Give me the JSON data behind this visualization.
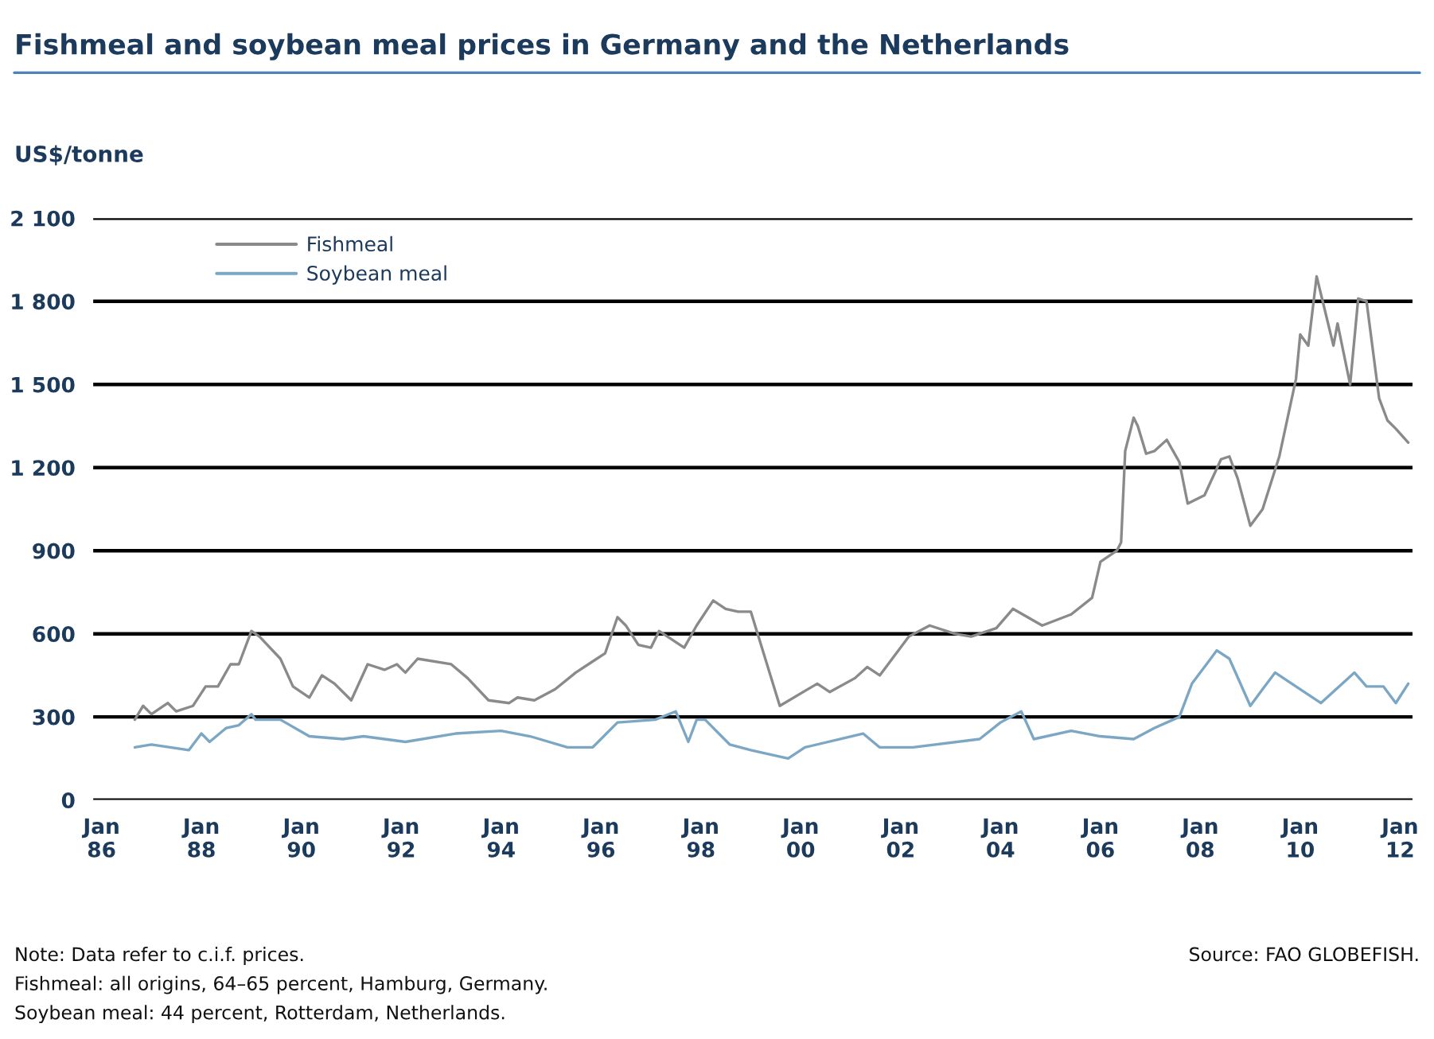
{
  "chart_data": {
    "type": "line",
    "title": "Fishmeal and soybean meal prices in Germany and the Netherlands",
    "ylabel": "US$/tonne",
    "series": [
      {
        "name": "Fishmeal",
        "color": "#8a8a8a",
        "x": [
          "1986-09",
          "1986-11",
          "1987-01",
          "1987-05",
          "1987-07",
          "1987-11",
          "1988-02",
          "1988-05",
          "1988-08",
          "1988-10",
          "1989-01",
          "1989-03",
          "1989-08",
          "1989-11",
          "1990-03",
          "1990-06",
          "1990-09",
          "1991-01",
          "1991-05",
          "1991-09",
          "1991-12",
          "1992-02",
          "1992-05",
          "1993-01",
          "1993-05",
          "1993-10",
          "1994-03",
          "1994-05",
          "1994-09",
          "1995-02",
          "1995-07",
          "1995-11",
          "1996-02",
          "1996-05",
          "1996-07",
          "1996-10",
          "1997-01",
          "1997-03",
          "1997-09",
          "1997-12",
          "1998-04",
          "1998-07",
          "1998-10",
          "1999-01",
          "1999-08",
          "2000-05",
          "2000-08",
          "2001-02",
          "2001-05",
          "2001-08",
          "2002-03",
          "2002-08",
          "2003-02",
          "2003-06",
          "2003-12",
          "2004-04",
          "2004-11",
          "2005-06",
          "2005-11",
          "2006-01",
          "2006-05",
          "2006-06",
          "2006-07",
          "2006-09",
          "2006-10",
          "2006-12",
          "2007-02",
          "2007-05",
          "2007-08",
          "2007-10",
          "2008-02",
          "2008-06",
          "2008-08",
          "2008-10",
          "2009-01",
          "2009-04",
          "2009-08",
          "2009-12",
          "2010-01",
          "2010-03",
          "2010-05",
          "2010-09",
          "2010-10",
          "2011-01",
          "2011-03",
          "2011-05",
          "2011-08",
          "2011-10",
          "2011-12",
          "2012-03"
        ],
        "values": [
          290,
          340,
          310,
          350,
          320,
          340,
          410,
          410,
          490,
          490,
          610,
          590,
          510,
          410,
          370,
          450,
          420,
          360,
          490,
          470,
          490,
          460,
          510,
          490,
          440,
          360,
          350,
          370,
          360,
          400,
          460,
          500,
          530,
          660,
          630,
          560,
          550,
          610,
          550,
          630,
          720,
          690,
          680,
          680,
          340,
          420,
          390,
          440,
          480,
          450,
          590,
          630,
          600,
          590,
          620,
          690,
          630,
          670,
          730,
          860,
          900,
          930,
          1260,
          1380,
          1350,
          1250,
          1260,
          1300,
          1220,
          1070,
          1100,
          1230,
          1240,
          1160,
          990,
          1050,
          1240,
          1520,
          1680,
          1640,
          1890,
          1640,
          1720,
          1500,
          1810,
          1800,
          1450,
          1370,
          1340,
          1290
        ]
      },
      {
        "name": "Soybean meal",
        "color": "#7ba7c4",
        "x": [
          "1986-09",
          "1987-01",
          "1987-10",
          "1988-01",
          "1988-03",
          "1988-07",
          "1988-10",
          "1989-01",
          "1989-02",
          "1989-08",
          "1990-03",
          "1990-11",
          "1991-04",
          "1992-02",
          "1993-02",
          "1994-01",
          "1994-08",
          "1995-05",
          "1995-11",
          "1996-05",
          "1997-02",
          "1997-07",
          "1997-10",
          "1997-12",
          "1998-02",
          "1998-08",
          "1999-01",
          "1999-04",
          "1999-10",
          "2000-02",
          "2001-04",
          "2001-08",
          "2002-04",
          "2003-08",
          "2004-01",
          "2004-06",
          "2004-09",
          "2005-06",
          "2006-01",
          "2006-09",
          "2007-02",
          "2007-08",
          "2007-11",
          "2008-05",
          "2008-08",
          "2009-01",
          "2009-04",
          "2009-07",
          "2009-12",
          "2010-06",
          "2011-02",
          "2011-05",
          "2011-09",
          "2011-12",
          "2012-03"
        ],
        "values": [
          190,
          200,
          180,
          240,
          210,
          260,
          270,
          310,
          290,
          290,
          230,
          220,
          230,
          210,
          240,
          250,
          230,
          190,
          190,
          280,
          290,
          320,
          210,
          290,
          290,
          200,
          180,
          170,
          150,
          190,
          240,
          190,
          190,
          220,
          280,
          320,
          220,
          250,
          230,
          220,
          260,
          300,
          420,
          540,
          510,
          340,
          400,
          460,
          410,
          350,
          460,
          410,
          410,
          350,
          420
        ]
      }
    ],
    "xlim": [
      "1985-11",
      "2012-04"
    ],
    "xticks": [
      {
        "value": "1986-01",
        "label": "Jan\n86"
      },
      {
        "value": "1988-01",
        "label": "Jan\n88"
      },
      {
        "value": "1990-01",
        "label": "Jan\n90"
      },
      {
        "value": "1992-01",
        "label": "Jan\n92"
      },
      {
        "value": "1994-01",
        "label": "Jan\n94"
      },
      {
        "value": "1996-01",
        "label": "Jan\n96"
      },
      {
        "value": "1998-01",
        "label": "Jan\n98"
      },
      {
        "value": "2000-01",
        "label": "Jan\n00"
      },
      {
        "value": "2002-01",
        "label": "Jan\n02"
      },
      {
        "value": "2004-01",
        "label": "Jan\n04"
      },
      {
        "value": "2006-01",
        "label": "Jan\n06"
      },
      {
        "value": "2008-01",
        "label": "Jan\n08"
      },
      {
        "value": "2010-01",
        "label": "Jan\n10"
      },
      {
        "value": "2012-01",
        "label": "Jan\n12"
      }
    ],
    "ylim": [
      0,
      2100
    ],
    "yticks": [
      0,
      300,
      600,
      900,
      {
        "value": 1200,
        "label": "1 200"
      },
      {
        "value": 1500,
        "label": "1 500"
      },
      {
        "value": 1800,
        "label": "1 800"
      },
      {
        "value": 2100,
        "label": "2 100"
      }
    ],
    "grid": "y",
    "legend": "top left",
    "marker": "none",
    "line_style": "solid",
    "annotations": [
      "Note: Data refer to c.i.f. prices.",
      "Fishmeal: all origins, 64–65 percent, Hamburg, Germany.",
      "Soybean meal: 44 percent, Rotterdam, Netherlands.",
      "Source: FAO GLOBEFISH."
    ]
  }
}
